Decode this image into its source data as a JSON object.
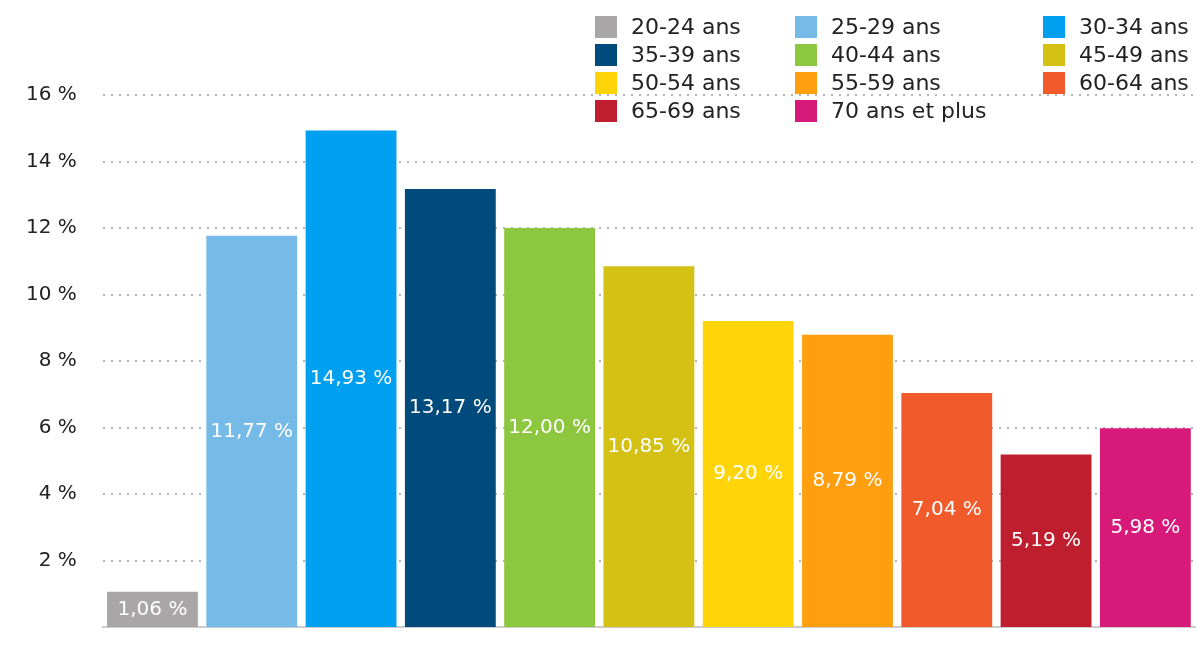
{
  "chart_data": {
    "type": "bar",
    "categories": [
      null,
      null,
      null,
      null,
      null,
      null,
      null,
      null,
      null,
      null,
      null
    ],
    "series": [
      {
        "name": "20-24 ans",
        "color": "#a8a6a6",
        "values": [
          1.06,
          null,
          null,
          null,
          null,
          null,
          null,
          null,
          null,
          null,
          null
        ],
        "value_labels": [
          "1,06 %",
          null,
          null,
          null,
          null,
          null,
          null,
          null,
          null,
          null,
          null
        ]
      },
      {
        "name": "25-29 ans",
        "color": "#76bbe7",
        "values": [
          null,
          11.77,
          null,
          null,
          null,
          null,
          null,
          null,
          null,
          null,
          null
        ],
        "value_labels": [
          null,
          "11,77 %",
          null,
          null,
          null,
          null,
          null,
          null,
          null,
          null,
          null
        ]
      },
      {
        "name": "30-34 ans",
        "color": "#00a0f0",
        "values": [
          null,
          null,
          14.93,
          null,
          null,
          null,
          null,
          null,
          null,
          null,
          null
        ],
        "value_labels": [
          null,
          null,
          "14,93 %",
          null,
          null,
          null,
          null,
          null,
          null,
          null,
          null
        ]
      },
      {
        "name": "35-39 ans",
        "color": "#004a7c",
        "values": [
          null,
          null,
          null,
          13.17,
          null,
          null,
          null,
          null,
          null,
          null,
          null
        ],
        "value_labels": [
          null,
          null,
          null,
          "13,17 %",
          null,
          null,
          null,
          null,
          null,
          null,
          null
        ]
      },
      {
        "name": "40-44 ans",
        "color": "#8dc63f",
        "values": [
          null,
          null,
          null,
          null,
          12.0,
          null,
          null,
          null,
          null,
          null,
          null
        ],
        "value_labels": [
          null,
          null,
          null,
          null,
          "12,00 %",
          null,
          null,
          null,
          null,
          null,
          null
        ]
      },
      {
        "name": "45-49 ans",
        "color": "#d4c114",
        "values": [
          null,
          null,
          null,
          null,
          null,
          10.85,
          null,
          null,
          null,
          null,
          null
        ],
        "value_labels": [
          null,
          null,
          null,
          null,
          null,
          "10,85 %",
          null,
          null,
          null,
          null,
          null
        ]
      },
      {
        "name": "50-54 ans",
        "color": "#ffd50a",
        "values": [
          null,
          null,
          null,
          null,
          null,
          null,
          9.2,
          null,
          null,
          null,
          null
        ],
        "value_labels": [
          null,
          null,
          null,
          null,
          null,
          null,
          "9,20 %",
          null,
          null,
          null,
          null
        ]
      },
      {
        "name": "55-59 ans",
        "color": "#ff9f10",
        "values": [
          null,
          null,
          null,
          null,
          null,
          null,
          null,
          8.79,
          null,
          null,
          null
        ],
        "value_labels": [
          null,
          null,
          null,
          null,
          null,
          null,
          null,
          "8,79 %",
          null,
          null,
          null
        ]
      },
      {
        "name": "60-64 ans",
        "color": "#f15a2b",
        "values": [
          null,
          null,
          null,
          null,
          null,
          null,
          null,
          null,
          7.04,
          null,
          null
        ],
        "value_labels": [
          null,
          null,
          null,
          null,
          null,
          null,
          null,
          null,
          "7,04 %",
          null,
          null
        ]
      },
      {
        "name": "65-69 ans",
        "color": "#be1e2d",
        "values": [
          null,
          null,
          null,
          null,
          null,
          null,
          null,
          null,
          null,
          5.19,
          null
        ],
        "value_labels": [
          null,
          null,
          null,
          null,
          null,
          null,
          null,
          null,
          null,
          "5,19 %",
          null
        ]
      },
      {
        "name": "70 ans et plus",
        "color": "#d71a7a",
        "values": [
          null,
          null,
          null,
          null,
          null,
          null,
          null,
          null,
          null,
          null,
          5.98
        ],
        "value_labels": [
          null,
          null,
          null,
          null,
          null,
          null,
          null,
          null,
          null,
          null,
          "5,98 %"
        ]
      }
    ],
    "ylim": [
      0,
      16
    ],
    "yticks": [
      {
        "value": 2,
        "label": "2 %"
      },
      {
        "value": 4,
        "label": "4 %"
      },
      {
        "value": 6,
        "label": "6 %"
      },
      {
        "value": 8,
        "label": "8 %"
      },
      {
        "value": 10,
        "label": "10 %"
      },
      {
        "value": 12,
        "label": "12 %"
      },
      {
        "value": 14,
        "label": "14 %"
      },
      {
        "value": 16,
        "label": "16 %"
      }
    ],
    "grid": "y",
    "legend": "top right",
    "tick_labels": "y"
  }
}
